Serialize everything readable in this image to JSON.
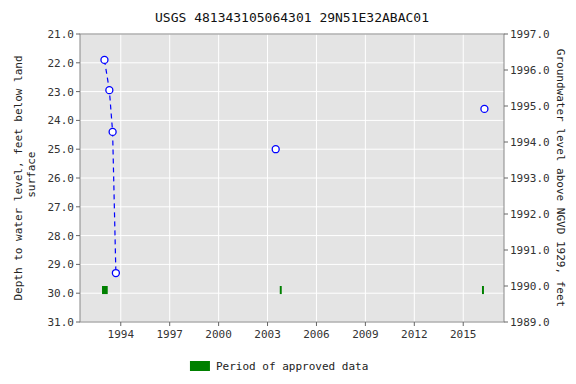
{
  "chart_data": {
    "type": "scatter",
    "title": "USGS 481343105064301 29N51E32ABAC01",
    "y_label": "Depth to water level, feet below land\n surface",
    "y2_label": "Groundwater level above NGVD 1929, feet",
    "xlim": [
      1991.5,
      2017.5
    ],
    "xticks": [
      1994,
      1997,
      2000,
      2003,
      2006,
      2009,
      2012,
      2015
    ],
    "ylim": [
      31.0,
      21.0
    ],
    "yticks": [
      {
        "value": 21.0,
        "label": "21.0"
      },
      {
        "value": 22.0,
        "label": "22.0"
      },
      {
        "value": 23.0,
        "label": "23.0"
      },
      {
        "value": 24.0,
        "label": "24.0"
      },
      {
        "value": 25.0,
        "label": "25.0"
      },
      {
        "value": 26.0,
        "label": "26.0"
      },
      {
        "value": 27.0,
        "label": "27.0"
      },
      {
        "value": 28.0,
        "label": "28.0"
      },
      {
        "value": 29.0,
        "label": "29.0"
      },
      {
        "value": 30.0,
        "label": "30.0"
      },
      {
        "value": 31.0,
        "label": "31.0"
      }
    ],
    "y2lim": [
      1989.0,
      1997.0
    ],
    "y2ticks": [
      {
        "value": 1989.0,
        "label": "1989.0"
      },
      {
        "value": 1990.0,
        "label": "1990.0"
      },
      {
        "value": 1991.0,
        "label": "1991.0"
      },
      {
        "value": 1992.0,
        "label": "1992.0"
      },
      {
        "value": 1993.0,
        "label": "1993.0"
      },
      {
        "value": 1994.0,
        "label": "1994.0"
      },
      {
        "value": 1995.0,
        "label": "1995.0"
      },
      {
        "value": 1996.0,
        "label": "1996.0"
      },
      {
        "value": 1997.0,
        "label": "1997.0"
      }
    ],
    "grid": true,
    "legend": "bottom",
    "series": [
      {
        "type": "line",
        "line_style": "dashed",
        "color": "#0000ff",
        "x": [
          1993.0,
          1993.3,
          1993.5,
          1993.7
        ],
        "values": [
          21.9,
          22.95,
          24.4,
          29.3
        ]
      },
      {
        "type": "scatter",
        "marker": "circle",
        "color": "#0000ff",
        "x": [
          1993.0,
          1993.3,
          1993.5,
          1993.7,
          2003.5,
          2016.3
        ],
        "values": [
          21.9,
          22.95,
          24.4,
          29.3,
          25.0,
          23.6
        ]
      },
      {
        "type": "span",
        "name": "Period of approved data",
        "color": "#008000",
        "x": [
          1992.85,
          2003.75,
          2016.15
        ],
        "widths": [
          0.35,
          0.12,
          0.12
        ],
        "bottom": 29.75,
        "height": 0.28
      }
    ]
  }
}
